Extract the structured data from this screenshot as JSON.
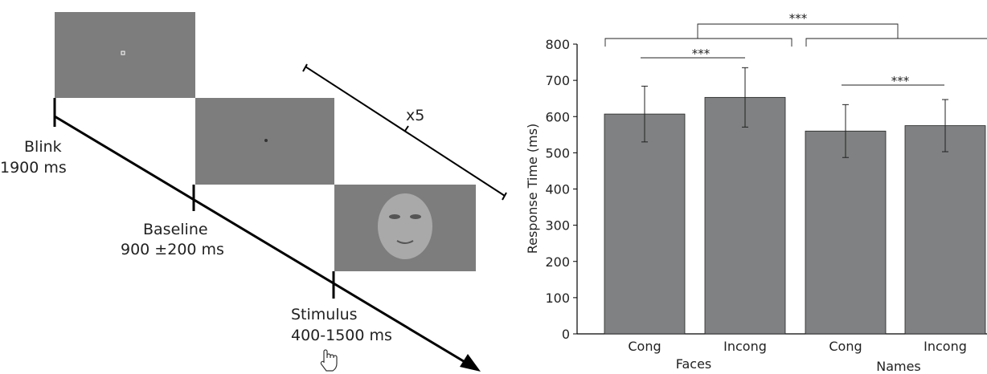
{
  "diagram": {
    "steps": [
      {
        "label": "Blink",
        "duration": "1900 ms"
      },
      {
        "label": "Baseline",
        "duration": "900 ±200 ms"
      },
      {
        "label": "Stimulus",
        "duration": "400-1500 ms"
      }
    ],
    "repeat": "x5"
  },
  "chart_data": {
    "type": "bar",
    "ylabel": "Response Time (ms)",
    "categories": [
      "Cong",
      "Incong",
      "Cong",
      "Incong"
    ],
    "groups": [
      "Faces",
      "Names"
    ],
    "values": [
      607,
      653,
      560,
      575
    ],
    "errors": [
      77,
      82,
      73,
      72
    ],
    "color": "#7f8182",
    "ylim": [
      0,
      800
    ],
    "yticks": [
      0,
      100,
      200,
      300,
      400,
      500,
      600,
      700,
      800
    ],
    "annotations": [
      "***",
      "***",
      "***"
    ]
  }
}
